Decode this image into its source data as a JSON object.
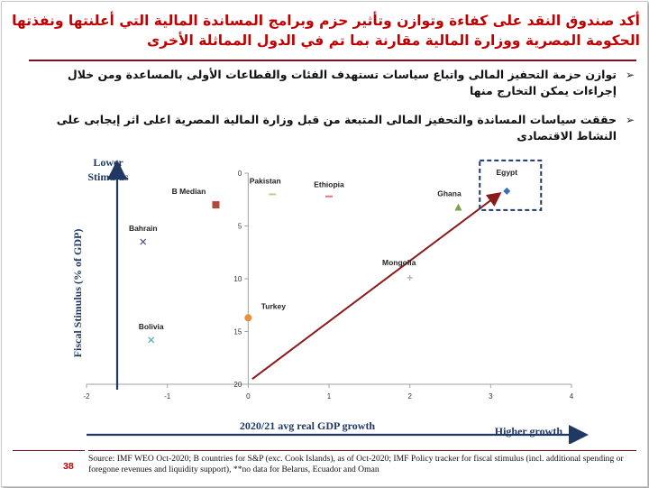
{
  "title": "أكد صندوق النقد على كفاءة وتوازن وتأثير حزم وبرامج المساندة المالية التي أعلنتها ونفذتها الحكومة المصرية ووزارة المالية مقارنة بما تم في الدول المماثلة الأخرى",
  "bullets": [
    "توازن حزمة التحفيز المالى واتباع سياسات تستهدف الفئات والقطاعات الأولى بالمساعدة ومن خلال إجراءات يمكن التخارج منها",
    "حققت سياسات المساندة والتحفيز المالى المتبعة من قبل وزارة المالية المصرية اعلى اثر إيجابى على النشاط الاقتصادى"
  ],
  "bullet_icon": "arrowhead-bullet-icon",
  "page_number": "38",
  "source": "Source: IMF WEO Oct-2020; B countries for S&P (exc. Cook Islands), as of Oct-2020; IMF Policy tracker for fiscal stimulus (incl. additional spending or foregone revenues and liquidity support), **no data for Belarus, Ecuador and Oman",
  "colors": {
    "title": "#c00000",
    "arrow": "#8b1a1a",
    "axis": "#1f3864",
    "box": "#1f3864"
  },
  "chart_data": {
    "type": "scatter",
    "xlabel": "2020/21 avg real GDP growth",
    "ylabel": "Fiscal Stimulus (% of GDP)",
    "x_annotation": "Higher growth",
    "y_annotation": "Lower Stimulus",
    "xlim": [
      -2,
      4
    ],
    "ylim": [
      0,
      20
    ],
    "y_reversed": true,
    "xticks": [
      "-2",
      "-1",
      "0",
      "1",
      "2",
      "3",
      "4"
    ],
    "yticks": [
      "0",
      "5",
      "10",
      "15",
      "20"
    ],
    "points": [
      {
        "label": "Egypt",
        "x": 3.2,
        "y": 1.7,
        "marker": "diamond",
        "color": "#3a6fb5"
      },
      {
        "label": "Ghana",
        "x": 2.6,
        "y": 3.2,
        "marker": "triangle",
        "color": "#7aa34a"
      },
      {
        "label": "Ethiopia",
        "x": 1.0,
        "y": 2.2,
        "marker": "dash",
        "color": "#e07a7a"
      },
      {
        "label": "Pakistan",
        "x": 0.3,
        "y": 2.0,
        "marker": "dash",
        "color": "#c9c98a"
      },
      {
        "label": "B Median",
        "x": -0.4,
        "y": 3.0,
        "marker": "square",
        "color": "#b04a3a"
      },
      {
        "label": "Bahrain",
        "x": -1.3,
        "y": 6.5,
        "marker": "x",
        "color": "#4a5a8a"
      },
      {
        "label": "Mongolia",
        "x": 2.0,
        "y": 9.9,
        "marker": "plus",
        "color": "#b0b0b0"
      },
      {
        "label": "Turkey",
        "x": 0.0,
        "y": 13.7,
        "marker": "circle",
        "color": "#e8903a"
      },
      {
        "label": "Bolivia",
        "x": -1.2,
        "y": 15.8,
        "marker": "x",
        "color": "#5ab0c0"
      }
    ],
    "trend_arrow": {
      "from": [
        0.05,
        19.5
      ],
      "to": [
        3.1,
        2.0
      ]
    }
  }
}
